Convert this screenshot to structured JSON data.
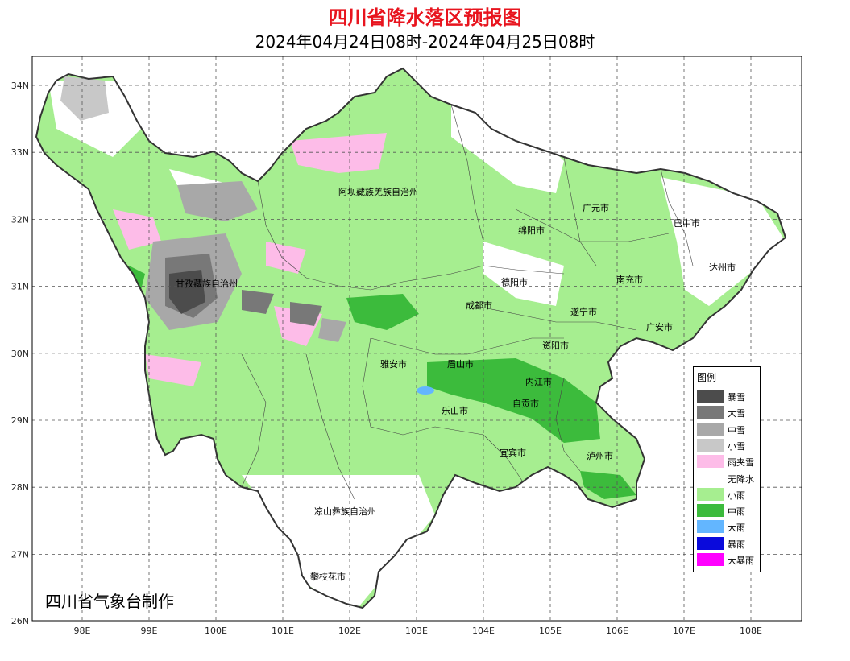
{
  "title": "四川省降水落区预报图",
  "subtitle": "2024年04月24日08时-2024年04月25日08时",
  "credit": "四川省气象台制作",
  "colors": {
    "title": "#e8141e",
    "light_rain": "#a6ee90",
    "moderate_rain": "#3cbb3c",
    "heavy_rain": "#63b6ff",
    "rain_snow": "#fdbce8",
    "light_snow": "#c8c8c8",
    "moderate_snow": "#a8a8a8",
    "heavy_snow": "#787878",
    "blizzard": "#4c4c4c"
  },
  "axes": {
    "lon_labels": [
      "98E",
      "99E",
      "100E",
      "101E",
      "102E",
      "103E",
      "104E",
      "105E",
      "106E",
      "107E",
      "108E"
    ],
    "lat_labels": [
      "34N",
      "33N",
      "32N",
      "31N",
      "30N",
      "29N",
      "28N",
      "27N",
      "26N"
    ],
    "grid": "dashed"
  },
  "legend": {
    "title": "图例",
    "items": [
      {
        "label": "暴雪",
        "color": "#4c4c4c"
      },
      {
        "label": "大雪",
        "color": "#787878"
      },
      {
        "label": "中雪",
        "color": "#a8a8a8"
      },
      {
        "label": "小雪",
        "color": "#c8c8c8"
      },
      {
        "label": "雨夹雪",
        "color": "#fdbce8"
      },
      {
        "label": "无降水",
        "color": "#ffffff"
      },
      {
        "label": "小雨",
        "color": "#a6ee90"
      },
      {
        "label": "中雨",
        "color": "#3cbb3c"
      },
      {
        "label": "大雨",
        "color": "#63b6ff"
      },
      {
        "label": "暴雨",
        "color": "#0a0adc"
      },
      {
        "label": "大暴雨",
        "color": "#ff00ff"
      }
    ]
  },
  "cities": [
    {
      "name": "阿坝藏族羌族自治州"
    },
    {
      "name": "广元市"
    },
    {
      "name": "巴中市"
    },
    {
      "name": "绵阳市"
    },
    {
      "name": "达州市"
    },
    {
      "name": "甘孜藏族自治州"
    },
    {
      "name": "德阳市"
    },
    {
      "name": "南充市"
    },
    {
      "name": "成都市"
    },
    {
      "name": "遂宁市"
    },
    {
      "name": "广安市"
    },
    {
      "name": "资阳市"
    },
    {
      "name": "雅安市"
    },
    {
      "name": "眉山市"
    },
    {
      "name": "内江市"
    },
    {
      "name": "自贡市"
    },
    {
      "name": "乐山市"
    },
    {
      "name": "宜宾市"
    },
    {
      "name": "泸州市"
    },
    {
      "name": "凉山彝族自治州"
    },
    {
      "name": "攀枝花市"
    }
  ]
}
